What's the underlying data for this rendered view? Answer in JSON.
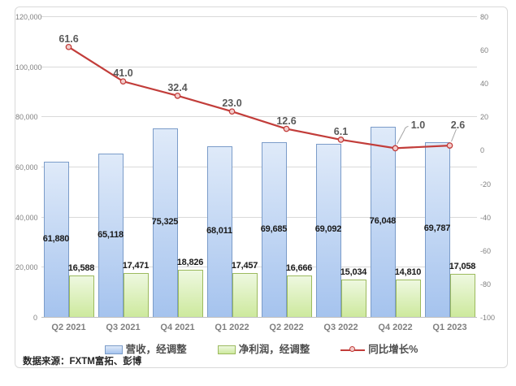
{
  "source_note": "数据来源：FXTM富拓、彭博",
  "chart_data": {
    "type": "combo_bar_line",
    "title": "",
    "categories": [
      "Q2 2021",
      "Q3 2021",
      "Q4 2021",
      "Q1 2022",
      "Q2 2022",
      "Q3 2022",
      "Q4 2022",
      "Q1 2023"
    ],
    "series": [
      {
        "name": "营收，经调整",
        "type": "bar",
        "axis": "left",
        "values": [
          61880,
          65118,
          75325,
          68011,
          69685,
          69092,
          76048,
          69787
        ],
        "labels": [
          "61,880",
          "65,118",
          "75,325",
          "68,011",
          "69,685",
          "69,092",
          "76,048",
          "69,787"
        ],
        "fill_top": "#dfeaf9",
        "fill_bottom": "#a5c3ee",
        "border": "#7b9cc9",
        "label_position": "inside-center"
      },
      {
        "name": "净利润，经调整",
        "type": "bar",
        "axis": "left",
        "values": [
          16588,
          17471,
          18826,
          17457,
          16666,
          15034,
          14810,
          17058
        ],
        "labels": [
          "16,588",
          "17,471",
          "18,826",
          "17,457",
          "16,666",
          "15,034",
          "14,810",
          "17,058"
        ],
        "fill_top": "#eef8e0",
        "fill_bottom": "#cde99d",
        "border": "#9cba5e",
        "label_position": "outside-end"
      },
      {
        "name": "同比增长%",
        "type": "line",
        "axis": "right",
        "values": [
          61.6,
          41.0,
          32.4,
          23.0,
          12.6,
          6.1,
          1.0,
          2.6
        ],
        "labels": [
          "61.6",
          "41.0",
          "32.4",
          "23.0",
          "12.6",
          "6.1",
          "1.0",
          "2.6"
        ],
        "color": "#c23d3a",
        "marker_fill": "#f2cdcc"
      }
    ],
    "left_axis": {
      "min": 0,
      "max": 120000,
      "step": 20000,
      "tick_labels": [
        "120,000",
        "100,000",
        "80,000",
        "60,000",
        "40,000",
        "20,000",
        "0"
      ]
    },
    "right_axis": {
      "min": -100,
      "max": 80,
      "step": 20,
      "tick_labels": [
        "80",
        "60",
        "40",
        "20",
        "0",
        "-20",
        "-40",
        "-60",
        "-80",
        "-100"
      ]
    },
    "legend_position": "bottom",
    "grid": true
  },
  "colors": {
    "gridline": "#d9d9d9",
    "axis_line": "#bfbfbf",
    "tick_text": "#808080",
    "bar_label": "#1a1a1a",
    "line_label": "#595959",
    "panel_border": "#d9d9d9"
  }
}
